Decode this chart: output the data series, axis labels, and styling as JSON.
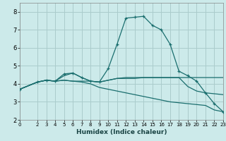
{
  "xlabel": "Humidex (Indice chaleur)",
  "background_color": "#cceaea",
  "grid_color": "#aacccc",
  "line_color": "#1a6e6e",
  "xlim": [
    0,
    23
  ],
  "ylim": [
    2,
    8.5
  ],
  "xticks": [
    0,
    2,
    3,
    4,
    5,
    6,
    7,
    8,
    9,
    10,
    11,
    12,
    13,
    14,
    15,
    16,
    17,
    18,
    19,
    20,
    21,
    22,
    23
  ],
  "yticks": [
    2,
    3,
    4,
    5,
    6,
    7,
    8
  ],
  "series": [
    {
      "x": [
        0,
        2,
        3,
        4,
        5,
        6,
        7,
        8,
        9,
        10,
        11,
        12,
        13,
        14,
        15,
        16,
        17,
        18,
        19,
        20,
        21,
        22,
        23
      ],
      "y": [
        3.7,
        4.1,
        4.2,
        4.15,
        4.55,
        4.6,
        4.35,
        4.15,
        4.1,
        4.85,
        6.2,
        7.65,
        7.7,
        7.75,
        7.25,
        7.0,
        6.2,
        4.7,
        4.45,
        4.15,
        3.5,
        2.9,
        2.45
      ],
      "marker": true
    },
    {
      "x": [
        0,
        2,
        3,
        4,
        5,
        6,
        7,
        8,
        9,
        10,
        11,
        12,
        13,
        14,
        15,
        16,
        17,
        18,
        19,
        20,
        21,
        22,
        23
      ],
      "y": [
        3.7,
        4.1,
        4.2,
        4.15,
        4.2,
        4.15,
        4.15,
        4.15,
        4.1,
        4.2,
        4.3,
        4.3,
        4.3,
        4.35,
        4.35,
        4.35,
        4.35,
        4.35,
        4.35,
        4.35,
        4.35,
        4.35,
        4.35
      ],
      "marker": false
    },
    {
      "x": [
        0,
        2,
        3,
        4,
        5,
        6,
        7,
        8,
        9,
        10,
        11,
        12,
        13,
        14,
        15,
        16,
        17,
        18,
        19,
        20,
        21,
        22,
        23
      ],
      "y": [
        3.7,
        4.1,
        4.2,
        4.15,
        4.2,
        4.15,
        4.1,
        4.0,
        3.8,
        3.7,
        3.6,
        3.5,
        3.4,
        3.3,
        3.2,
        3.1,
        3.0,
        2.95,
        2.9,
        2.85,
        2.8,
        2.55,
        2.45
      ],
      "marker": false
    },
    {
      "x": [
        0,
        2,
        3,
        4,
        5,
        6,
        7,
        8,
        9,
        10,
        11,
        12,
        13,
        14,
        15,
        16,
        17,
        18,
        19,
        20,
        21,
        22,
        23
      ],
      "y": [
        3.7,
        4.1,
        4.2,
        4.15,
        4.45,
        4.6,
        4.35,
        4.15,
        4.1,
        4.2,
        4.3,
        4.35,
        4.35,
        4.35,
        4.35,
        4.35,
        4.35,
        4.35,
        3.85,
        3.6,
        3.5,
        3.45,
        3.4
      ],
      "marker": false
    }
  ]
}
